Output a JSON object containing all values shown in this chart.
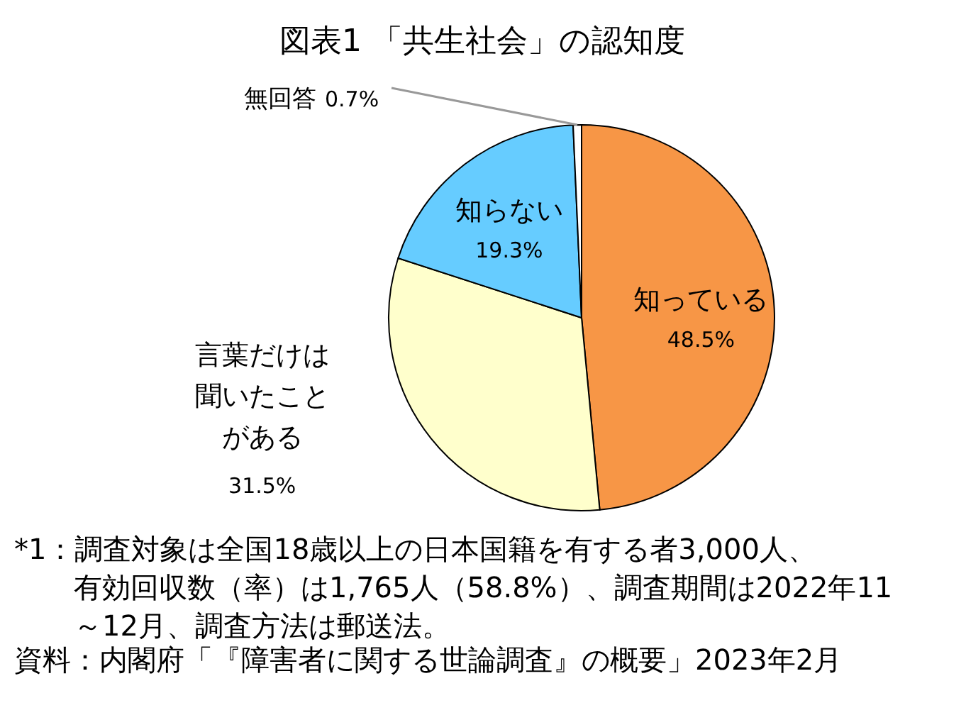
{
  "chart_data": {
    "type": "pie",
    "title": "図表1 「共生社会」の認知度",
    "categories": [
      "知っている",
      "言葉だけは聞いたことがある",
      "知らない",
      "無回答"
    ],
    "values": [
      48.5,
      31.5,
      19.3,
      0.7
    ],
    "value_labels": [
      "48.5%",
      "31.5%",
      "19.3%",
      "0.7%"
    ],
    "colors": [
      "#f79646",
      "#ffffcc",
      "#66ccff",
      "#ffffff"
    ],
    "annotations": [
      "*1：調査対象は全国18歳以上の日本国籍を有する者3,000人、有効回収数（率）は1,765人（58.8%）、調査期間は2022年11～12月、調査方法は郵送法。",
      "資料：内閣府「『障害者に関する世論調査』の概要」2023年2月"
    ]
  }
}
